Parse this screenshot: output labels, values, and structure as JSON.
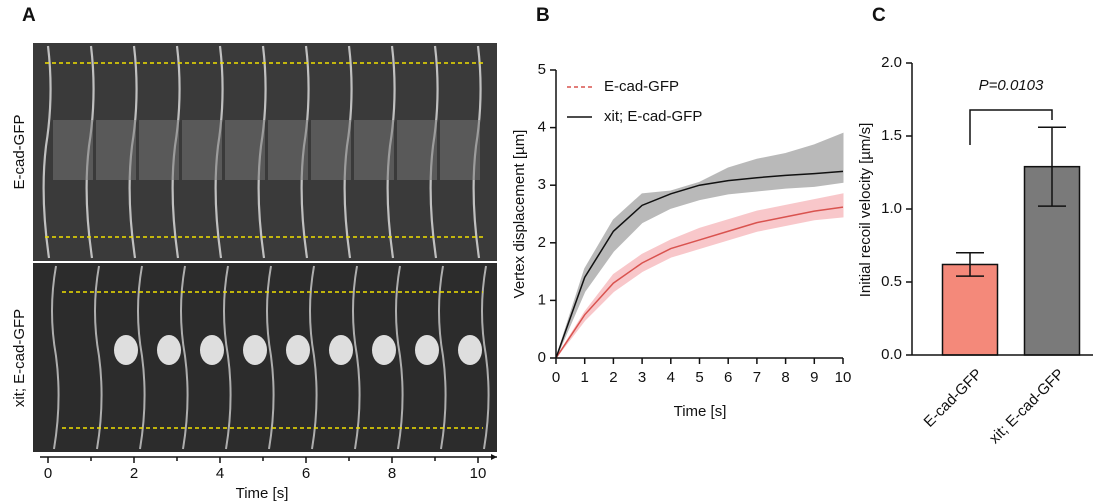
{
  "panel_labels": [
    "A",
    "B",
    "C"
  ],
  "chart_data": [
    {
      "type": "kymograph",
      "row_labels": [
        "E-cad-GFP",
        "xit; E-cad-GFP"
      ],
      "xlabel": "Time [s]",
      "xlim": [
        0,
        10
      ],
      "xticks": [
        0,
        2,
        4,
        6,
        8,
        10
      ]
    },
    {
      "type": "line",
      "xlabel": "Time [s]",
      "ylabel": "Vertex displacement [µm]",
      "x": [
        0,
        1,
        2,
        3,
        4,
        5,
        6,
        7,
        8,
        9,
        10
      ],
      "xlim": [
        0,
        10
      ],
      "xticks": [
        0,
        1,
        2,
        3,
        4,
        5,
        6,
        7,
        8,
        9,
        10
      ],
      "ylim": [
        0,
        5
      ],
      "yticks": [
        0,
        1,
        2,
        3,
        4,
        5
      ],
      "series": [
        {
          "name": "E-cad-GFP",
          "color": "#d9534f",
          "band_color": "#f4a3a8",
          "values": [
            0,
            0.75,
            1.3,
            1.65,
            1.9,
            2.05,
            2.2,
            2.35,
            2.45,
            2.55,
            2.62
          ],
          "lower": [
            0,
            0.65,
            1.15,
            1.5,
            1.75,
            1.9,
            2.05,
            2.2,
            2.3,
            2.4,
            2.45
          ],
          "upper": [
            0,
            0.8,
            1.45,
            1.8,
            2.05,
            2.25,
            2.4,
            2.55,
            2.65,
            2.75,
            2.85
          ]
        },
        {
          "name": "xit; E-cad-GFP",
          "color": "#111111",
          "band_color": "#8c8c8c",
          "values": [
            0,
            1.4,
            2.2,
            2.65,
            2.85,
            3.0,
            3.08,
            3.13,
            3.17,
            3.2,
            3.24
          ],
          "lower": [
            0,
            1.15,
            1.85,
            2.35,
            2.6,
            2.75,
            2.85,
            2.9,
            2.95,
            2.98,
            3.05
          ],
          "upper": [
            0,
            1.55,
            2.4,
            2.85,
            2.9,
            3.05,
            3.3,
            3.45,
            3.55,
            3.7,
            3.9
          ]
        }
      ]
    },
    {
      "type": "bar",
      "ylabel": "Initial recoil velocity [µm/s]",
      "categories": [
        "E-cad-GFP",
        "xit; E-cad-GFP"
      ],
      "colors": [
        "#f4897a",
        "#7a7a7a"
      ],
      "values": [
        0.62,
        1.29
      ],
      "errors": [
        0.08,
        0.27
      ],
      "ylim": [
        0,
        2
      ],
      "yticks": [
        {
          "value": 0,
          "label": "0.0"
        },
        {
          "value": 0.5,
          "label": "0.5"
        },
        {
          "value": 1,
          "label": "1.0"
        },
        {
          "value": 1.5,
          "label": "1.5"
        },
        {
          "value": 2,
          "label": "2.0"
        }
      ],
      "annotation": "P=0.0103"
    }
  ]
}
